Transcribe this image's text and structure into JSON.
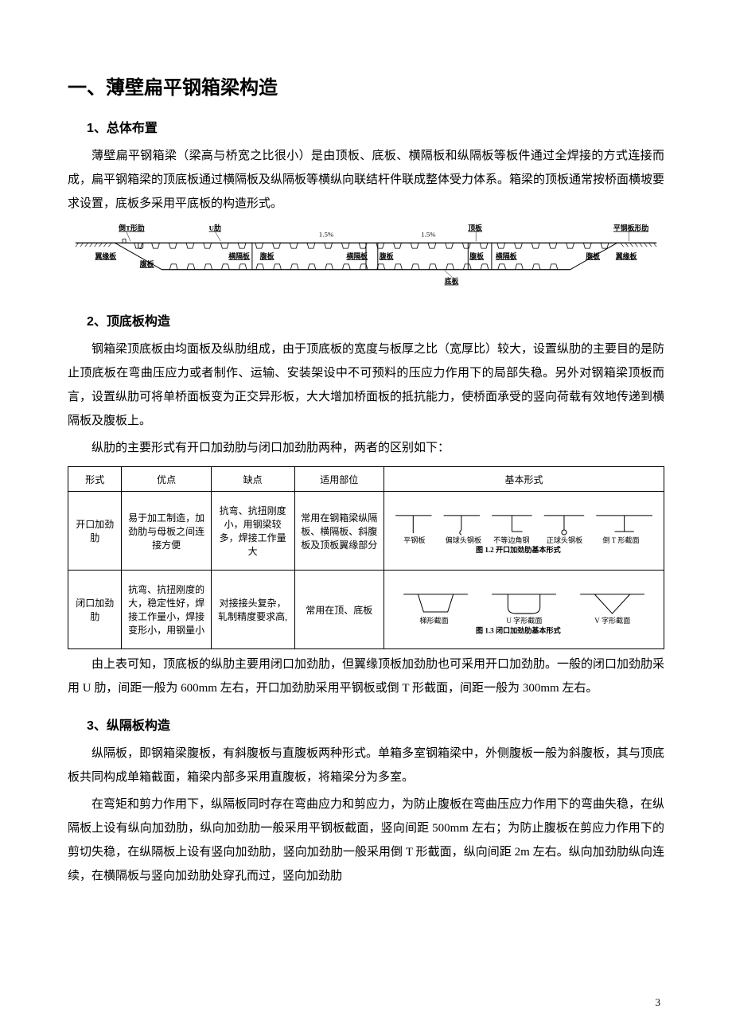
{
  "title": "一、薄壁扁平钢箱梁构造",
  "sections": {
    "s1": {
      "heading": "1、总体布置",
      "p1": "薄壁扁平钢箱梁（梁高与桥宽之比很小）是由顶板、底板、横隔板和纵隔板等板件通过全焊接的方式连接而成，扁平钢箱梁的顶底板通过横隔板及纵隔板等横纵向联结杆件联成整体受力体系。箱梁的顶板通常按桥面横坡要求设置，底板多采用平底板的构造形式。"
    },
    "diagram1": {
      "labels": {
        "invT": "倒T形肋",
        "uRib": "U肋",
        "topPlate": "顶板",
        "flatRib": "平钢板形肋",
        "edgePlateL": "翼缘板",
        "edgePlateR": "翼缘板",
        "webL": "腹板",
        "webR": "腹板",
        "diaphragm1": "横隔板",
        "diaphragm2": "横隔板",
        "diaphragm3": "横隔板",
        "web2": "腹板",
        "web3": "腹板",
        "bottomPlate": "底板",
        "slope": "1.5%"
      },
      "colors": {
        "line": "#000000",
        "bg": "#ffffff"
      }
    },
    "s2": {
      "heading": "2、顶底板构造",
      "p1": "钢箱梁顶底板由均面板及纵肋组成，由于顶底板的宽度与板厚之比（宽厚比）较大，设置纵肋的主要目的是防止顶底板在弯曲压应力或者制作、运输、安装架设中不可预料的压应力作用下的局部失稳。另外对钢箱梁顶板而言，设置纵肋可将单桥面板变为正交异形板，大大增加桥面板的抵抗能力，使桥面承受的竖向荷载有效地传递到横隔板及腹板上。",
      "p2": "纵肋的主要形式有开口加劲肋与闭口加劲肋两种，两者的区别如下："
    },
    "table": {
      "headers": [
        "形式",
        "优点",
        "缺点",
        "适用部位",
        "基本形式"
      ],
      "rows": [
        {
          "c0": "开口加劲肋",
          "c1": "易于加工制造，加劲肋与母板之间连接方便",
          "c2": "抗弯、抗扭刚度小，用钢梁较多，焊接工作量大",
          "c3": "常用在钢箱梁纵隔板、横隔板、斜腹板及顶板翼缘部分",
          "shapes": {
            "labels": [
              "平钢板",
              "偏球头钢板",
              "不等边角钢",
              "正球头钢板",
              "倒 T 形截面"
            ],
            "caption": "图 1.2  开口加劲肋基本形式"
          }
        },
        {
          "c0": "闭口加劲肋",
          "c1": "抗弯、抗扭刚度的大，稳定性好，焊接工作量小，焊接变形小，用钢量小",
          "c2": "对接接头复杂，轧制精度要求高,",
          "c3": "常用在顶、底板",
          "shapes": {
            "labels": [
              "梯形截面",
              "U 字形截面",
              "V 字形截面"
            ],
            "caption": "图 1.3  闭口加劲肋基本形式"
          }
        }
      ]
    },
    "afterTable": {
      "p1": "由上表可知，顶底板的纵肋主要用闭口加劲肋，但翼缘顶板加劲肋也可采用开口加劲肋。一般的闭口加劲肋采用 U 肋，间距一般为 600mm 左右，开口加劲肋采用平钢板或倒 T 形截面，间距一般为 300mm 左右。"
    },
    "s3": {
      "heading": "3、纵隔板构造",
      "p1": "纵隔板，即钢箱梁腹板，有斜腹板与直腹板两种形式。单箱多室钢箱梁中，外侧腹板一般为斜腹板，其与顶底板共同构成单箱截面，箱梁内部多采用直腹板，将箱梁分为多室。",
      "p2": "在弯矩和剪力作用下，纵隔板同时存在弯曲应力和剪应力，为防止腹板在弯曲压应力作用下的弯曲失稳，在纵隔板上设有纵向加劲肋，纵向加劲肋一般采用平钢板截面，竖向间距 500mm 左右；为防止腹板在剪应力作用下的剪切失稳，在纵隔板上设有竖向加劲肋，竖向加劲肋一般采用倒 T 形截面，纵向间距 2m 左右。纵向加劲肋纵向连续，在横隔板与竖向加劲肋处穿孔而过，竖向加劲肋"
    }
  },
  "pageNumber": "3"
}
